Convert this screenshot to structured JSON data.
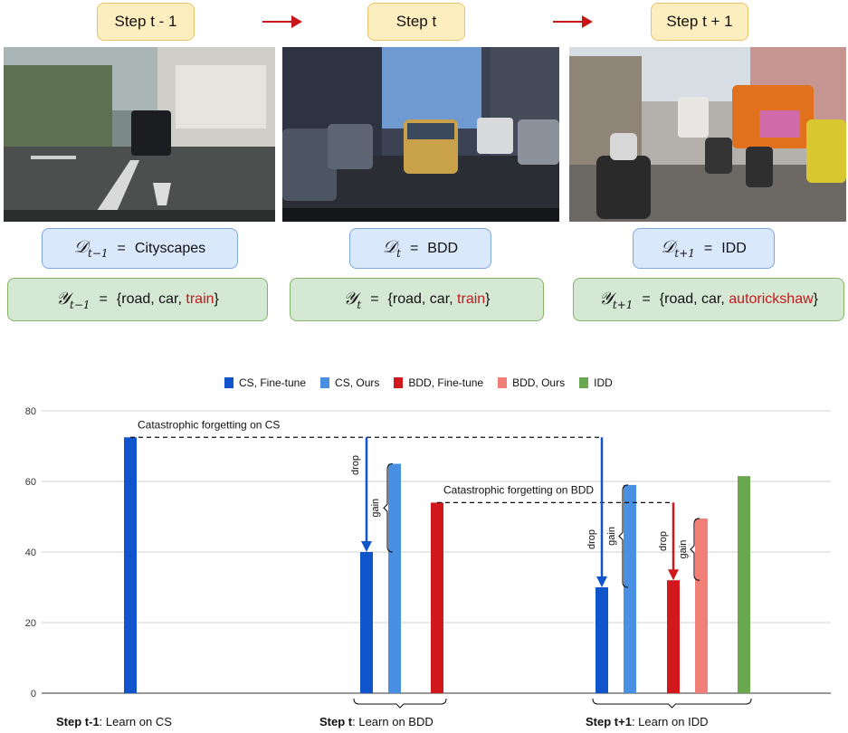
{
  "steps": [
    {
      "label": "Step t - 1",
      "domain_sym": "𝒟",
      "domain_sub": "t−1",
      "dataset": "Cityscapes",
      "label_sym": "𝒴",
      "label_sub": "t−1",
      "classes_open": "{road, car, ",
      "new_class": "train",
      "classes_close": "}"
    },
    {
      "label": "Step t",
      "domain_sym": "𝒟",
      "domain_sub": "t",
      "dataset": "BDD",
      "label_sym": "𝒴",
      "label_sub": "t",
      "classes_open": "{road, car, ",
      "new_class": "train",
      "classes_close": "}"
    },
    {
      "label": "Step t + 1",
      "domain_sym": "𝒟",
      "domain_sub": "t+1",
      "dataset": "IDD",
      "label_sym": "𝒴",
      "label_sub": "t+1",
      "classes_open": "{road, car, ",
      "new_class": "autorickshaw",
      "classes_close": "}"
    }
  ],
  "equals": "=",
  "colors": {
    "cs_finetune": "#1155cc",
    "cs_ours": "#4a90e2",
    "bdd_finetune": "#d0181d",
    "bdd_ours": "#ef7f77",
    "idd": "#6aa84f",
    "accent_red": "#c8171b"
  },
  "chart_data": {
    "type": "bar",
    "ylim": [
      0,
      80
    ],
    "yticks": [
      "0",
      "20",
      "40",
      "60",
      "80"
    ],
    "legend": [
      "CS, Fine-tune",
      "CS, Ours",
      "BDD, Fine-tune",
      "BDD, Ours",
      "IDD"
    ],
    "legend_position": "top",
    "grid": true,
    "groups": [
      {
        "caption_bold": "Step t-1",
        "caption_rest": ": Learn on CS",
        "bars": [
          {
            "series": "CS, Fine-tune",
            "value": 72.5
          }
        ]
      },
      {
        "caption_bold": "Step t",
        "caption_rest": ": Learn on BDD",
        "bars": [
          {
            "series": "CS, Fine-tune",
            "value": 40
          },
          {
            "series": "CS, Ours",
            "value": 65
          },
          {
            "series": "BDD, Fine-tune",
            "value": 54
          }
        ]
      },
      {
        "caption_bold": "Step t+1",
        "caption_rest": ": Learn on IDD",
        "bars": [
          {
            "series": "CS, Fine-tune",
            "value": 30
          },
          {
            "series": "CS, Ours",
            "value": 59
          },
          {
            "series": "BDD, Fine-tune",
            "value": 32
          },
          {
            "series": "BDD, Ours",
            "value": 49.5
          },
          {
            "series": "IDD",
            "value": 61.5
          }
        ]
      }
    ],
    "annotations": {
      "forget_cs": "Catastrophic forgetting on CS",
      "forget_bdd": "Catastrophic forgetting on BDD",
      "drop": "drop",
      "gain": "gain"
    }
  }
}
